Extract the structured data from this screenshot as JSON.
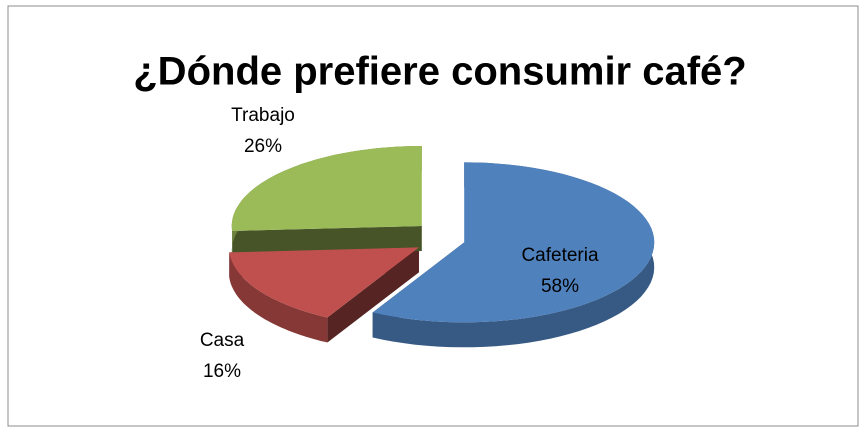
{
  "chart_data": {
    "type": "pie",
    "title": "¿Dónde prefiere consumir café?",
    "categories": [
      "Cafeteria",
      "Casa",
      "Trabajo"
    ],
    "values": [
      58,
      16,
      26
    ],
    "value_labels": [
      "58%",
      "16%",
      "26%"
    ],
    "colors": [
      "#4f81bd",
      "#c0504d",
      "#9bbb59"
    ]
  }
}
